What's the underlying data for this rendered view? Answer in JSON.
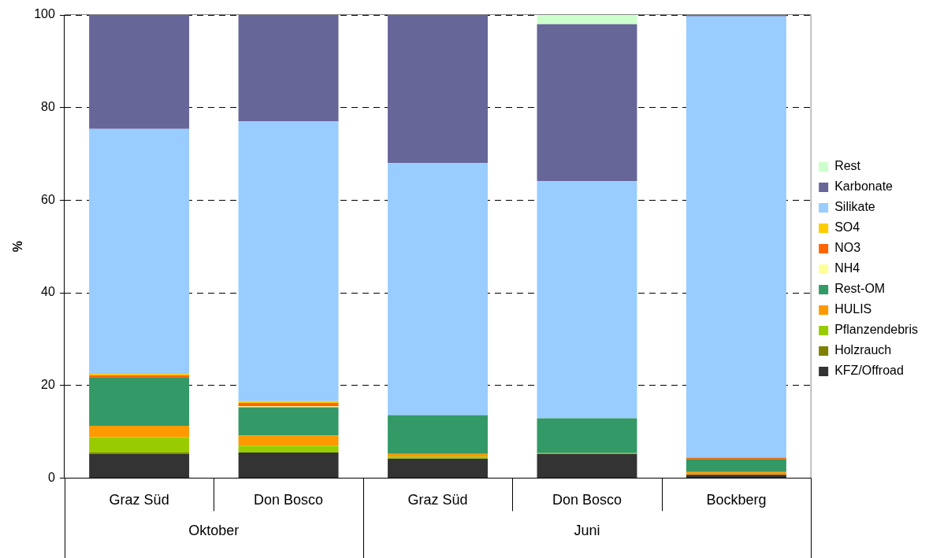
{
  "chart_data": {
    "type": "bar",
    "stacked": true,
    "ylabel": "%",
    "categories": [
      "Graz Süd",
      "Don Bosco",
      "Graz Süd",
      "Don Bosco",
      "Bockberg"
    ],
    "annotations": [
      "Oktober",
      "Juni"
    ],
    "ylim": [
      0,
      100
    ],
    "yticks": [
      0,
      20,
      40,
      60,
      80,
      100
    ],
    "grid": "y",
    "legend": "right",
    "series": [
      {
        "name": "KFZ/Offroad",
        "color": "#333333",
        "values": [
          5.2,
          5.5,
          4.2,
          5.2,
          0.7
        ]
      },
      {
        "name": "Holzrauch",
        "color": "#808000",
        "values": [
          0.3,
          0,
          0,
          0,
          0
        ]
      },
      {
        "name": "Pflanzendebris",
        "color": "#99cc00",
        "values": [
          3.3,
          1.5,
          0.4,
          0.2,
          0
        ]
      },
      {
        "name": "HULIS",
        "color": "#ff9900",
        "values": [
          2.5,
          2.2,
          0.6,
          0,
          0.6
        ]
      },
      {
        "name": "Rest-OM",
        "color": "#339966",
        "values": [
          10.5,
          6.1,
          8.4,
          7.5,
          2.8
        ]
      },
      {
        "name": "NH4",
        "color": "#ffff99",
        "values": [
          0,
          0.2,
          0,
          0,
          0
        ]
      },
      {
        "name": "NO3",
        "color": "#ff6600",
        "values": [
          0.4,
          0.7,
          0,
          0,
          0.3
        ]
      },
      {
        "name": "SO4",
        "color": "#ffcc00",
        "values": [
          0.3,
          0.4,
          0,
          0,
          0
        ]
      },
      {
        "name": "Silikate",
        "color": "#99ccff",
        "values": [
          52.9,
          60.4,
          54.4,
          51.2,
          95.3
        ]
      },
      {
        "name": "Karbonate",
        "color": "#666699",
        "values": [
          24.6,
          23.0,
          32.0,
          33.9,
          0.3
        ]
      },
      {
        "name": "Rest",
        "color": "#ccffcc",
        "values": [
          0,
          0,
          0,
          2.1,
          0
        ]
      }
    ]
  }
}
